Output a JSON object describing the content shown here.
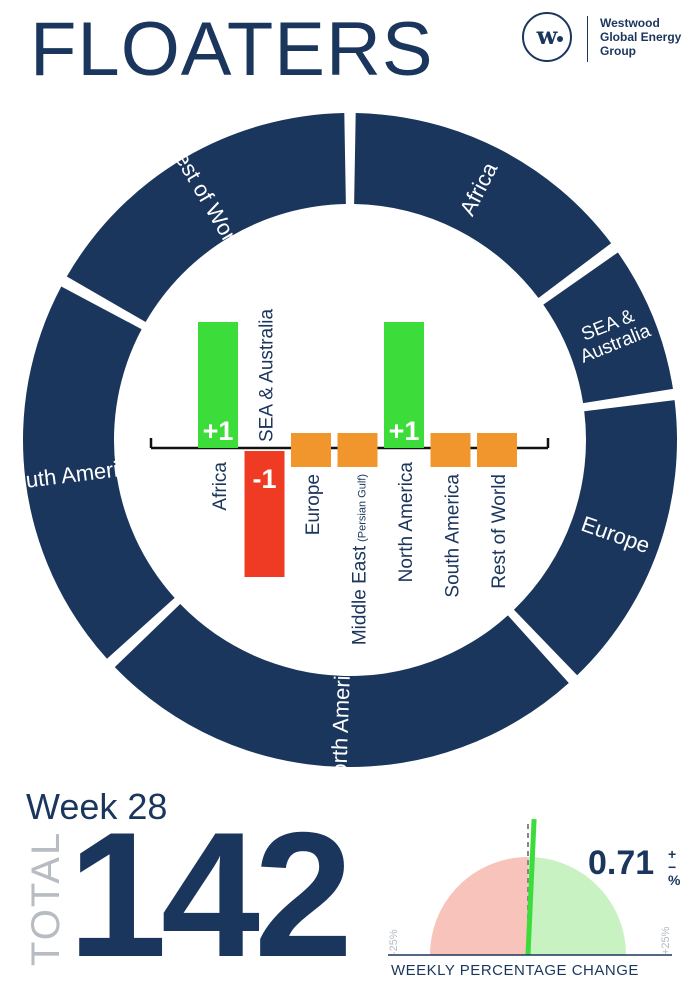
{
  "title": "FLOATERS",
  "logo": {
    "line1": "Westwood",
    "line2": "Global Energy",
    "line3": "Group",
    "mark": "w",
    "icon": "westwood-logo-icon"
  },
  "ring_segments": [
    "Africa",
    "SEA &\nAustralia",
    "Europe",
    "North America",
    "South America",
    "Rest of World"
  ],
  "chart_data": {
    "type": "bar",
    "categories": [
      "Africa",
      "SEA & Australia",
      "Europe",
      "Middle East",
      "North America",
      "South America",
      "Rest of World"
    ],
    "category_notes": [
      "",
      "",
      "",
      "(Persian Gulf)",
      "",
      "",
      ""
    ],
    "values": [
      1,
      -1,
      0,
      0,
      1,
      0,
      0
    ],
    "data_labels": [
      "+1",
      "-1",
      "",
      "",
      "+1",
      "",
      ""
    ],
    "colors": {
      "positive": "#3cdc3a",
      "negative": "#ef3b24",
      "zero": "#f0962d"
    }
  },
  "week": "Week 28",
  "total": {
    "label": "TOTAL",
    "value": "142"
  },
  "gauge": {
    "value": 0.71,
    "value_text": "0.71",
    "sign": "+",
    "sign2": "−",
    "unit": "%",
    "min_label": "-25%",
    "max_label": "+25%",
    "range": [
      -25,
      25
    ],
    "label": "WEEKLY PERCENTAGE CHANGE",
    "colors": {
      "negative": "#f8c3bb",
      "positive": "#c9f2c2",
      "needle": "#3cdc3a"
    }
  },
  "colors": {
    "navy": "#1b365d",
    "grey": "#b7bcc3"
  }
}
